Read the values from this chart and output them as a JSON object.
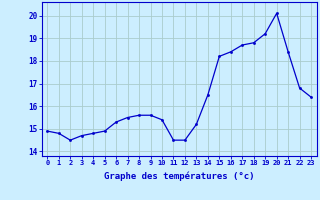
{
  "hours": [
    0,
    1,
    2,
    3,
    4,
    5,
    6,
    7,
    8,
    9,
    10,
    11,
    12,
    13,
    14,
    15,
    16,
    17,
    18,
    19,
    20,
    21,
    22,
    23
  ],
  "temperatures": [
    14.9,
    14.8,
    14.5,
    14.7,
    14.8,
    14.9,
    15.3,
    15.5,
    15.6,
    15.6,
    15.4,
    14.5,
    14.5,
    15.2,
    16.5,
    18.2,
    18.4,
    18.7,
    18.8,
    19.2,
    20.1,
    18.4,
    16.8,
    16.4
  ],
  "xlabel": "Graphe des températures (°c)",
  "ylim": [
    13.8,
    20.6
  ],
  "yticks": [
    14,
    15,
    16,
    17,
    18,
    19,
    20
  ],
  "xticks": [
    0,
    1,
    2,
    3,
    4,
    5,
    6,
    7,
    8,
    9,
    10,
    11,
    12,
    13,
    14,
    15,
    16,
    17,
    18,
    19,
    20,
    21,
    22,
    23
  ],
  "line_color": "#0000cc",
  "marker_color": "#0000cc",
  "bg_color": "#cceeff",
  "grid_color": "#aacccc",
  "axis_color": "#0000cc",
  "tick_color": "#0000cc",
  "label_color": "#0000cc"
}
